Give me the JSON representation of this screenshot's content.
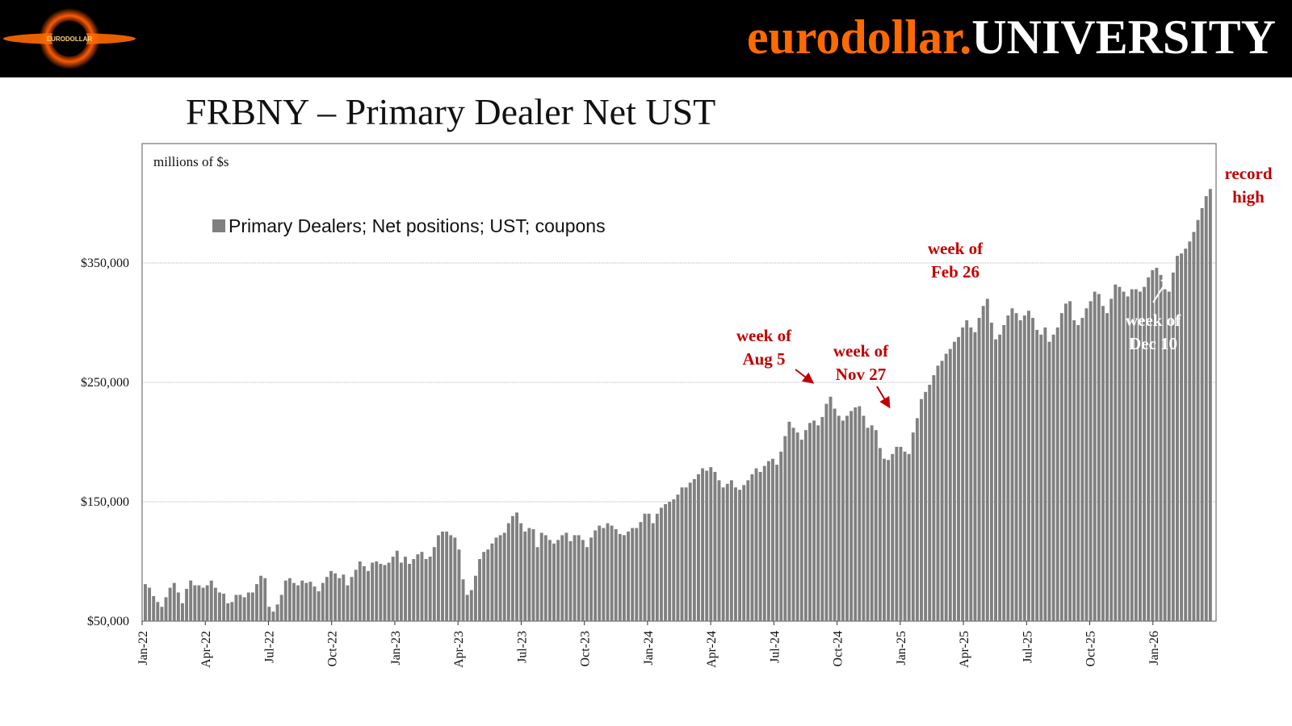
{
  "header": {
    "brand_part1": "eurodollar.",
    "brand_part2": "UNIVERSITY",
    "brand_color": "#ff6a00",
    "logo_text": "EURODOLLAR"
  },
  "title": "FRBNY – Primary Dealer Net UST",
  "chart_data": {
    "type": "bar",
    "title": "FRBNY – Primary Dealer Net UST",
    "unit_label": "millions of $s",
    "legend": "Primary Dealers; Net positions; UST; coupons",
    "series_color": "#808080",
    "ylim": [
      50000,
      450000
    ],
    "y_ticks": [
      50000,
      150000,
      250000,
      350000
    ],
    "y_tick_labels": [
      "$50,000",
      "$150,000",
      "$250,000",
      "$350,000"
    ],
    "x_tick_labels": [
      "Jan-22",
      "Apr-22",
      "Jul-22",
      "Oct-22",
      "Jan-23",
      "Apr-23",
      "Jul-23",
      "Oct-23",
      "Jan-24",
      "Apr-24",
      "Jul-24",
      "Oct-24",
      "Jan-25",
      "Apr-25",
      "Jul-25",
      "Oct-25",
      "Jan-26"
    ],
    "x_start": "2022-01",
    "weekly_values": [
      81000,
      78000,
      71000,
      66000,
      62000,
      70000,
      78000,
      82000,
      74000,
      65000,
      77000,
      84000,
      80000,
      80000,
      78000,
      80000,
      84000,
      78000,
      74000,
      73000,
      65000,
      66000,
      72000,
      72000,
      70000,
      74000,
      74000,
      81000,
      88000,
      86000,
      62000,
      58000,
      64000,
      72000,
      84000,
      86000,
      82000,
      80000,
      84000,
      82000,
      83000,
      79000,
      75000,
      82000,
      87000,
      92000,
      90000,
      86000,
      89000,
      80000,
      87000,
      93000,
      100000,
      96000,
      92000,
      99000,
      100000,
      98000,
      97000,
      99000,
      104000,
      109000,
      99000,
      104000,
      98000,
      102000,
      106000,
      108000,
      102000,
      104000,
      112000,
      122000,
      125000,
      125000,
      122000,
      120000,
      110000,
      85000,
      72000,
      76000,
      88000,
      102000,
      108000,
      110000,
      115000,
      120000,
      122000,
      124000,
      132000,
      138000,
      141000,
      132000,
      125000,
      128000,
      127000,
      112000,
      124000,
      122000,
      118000,
      115000,
      118000,
      122000,
      124000,
      117000,
      122000,
      122000,
      118000,
      112000,
      120000,
      126000,
      130000,
      128000,
      132000,
      130000,
      127000,
      123000,
      122000,
      125000,
      128000,
      128000,
      133000,
      140000,
      140000,
      132000,
      140000,
      145000,
      148000,
      150000,
      152000,
      156000,
      162000,
      162000,
      166000,
      169000,
      173000,
      178000,
      176000,
      179000,
      175000,
      168000,
      162000,
      165000,
      168000,
      162000,
      160000,
      164000,
      168000,
      173000,
      178000,
      175000,
      180000,
      184000,
      186000,
      181000,
      192000,
      205000,
      217000,
      212000,
      208000,
      202000,
      210000,
      216000,
      218000,
      214000,
      221000,
      232000,
      238000,
      228000,
      222000,
      218000,
      222000,
      226000,
      229000,
      230000,
      222000,
      212000,
      214000,
      210000,
      195000,
      186000,
      185000,
      190000,
      196000,
      196000,
      192000,
      190000,
      208000,
      220000,
      236000,
      242000,
      248000,
      256000,
      264000,
      268000,
      274000,
      278000,
      284000,
      288000,
      296000,
      302000,
      296000,
      292000,
      304000,
      314000,
      320000,
      300000,
      286000,
      290000,
      298000,
      306000,
      312000,
      308000,
      302000,
      306000,
      310000,
      304000,
      294000,
      290000,
      296000,
      284000,
      290000,
      296000,
      308000,
      316000,
      318000,
      302000,
      298000,
      304000,
      312000,
      318000,
      326000,
      324000,
      314000,
      308000,
      320000,
      332000,
      330000,
      326000,
      322000,
      328000,
      328000,
      326000,
      330000,
      338000,
      344000,
      346000,
      340000,
      328000,
      326000,
      342000,
      356000,
      358000,
      362000,
      368000,
      376000,
      386000,
      396000,
      406000,
      412000
    ],
    "annotations": [
      {
        "lines": [
          "week of",
          "Aug 5"
        ],
        "date": "2024-08-05",
        "color": "#c00000"
      },
      {
        "lines": [
          "week of",
          "Nov 27"
        ],
        "date": "2024-11-27",
        "color": "#c00000"
      },
      {
        "lines": [
          "week of",
          "Feb 26"
        ],
        "date": "2025-02-26",
        "color": "#c00000"
      },
      {
        "lines": [
          "week of",
          "Dec 10"
        ],
        "date": "2025-12-10",
        "color": "#ffffff"
      },
      {
        "lines": [
          "record",
          "high"
        ],
        "date": "latest",
        "color": "#c00000"
      }
    ]
  }
}
